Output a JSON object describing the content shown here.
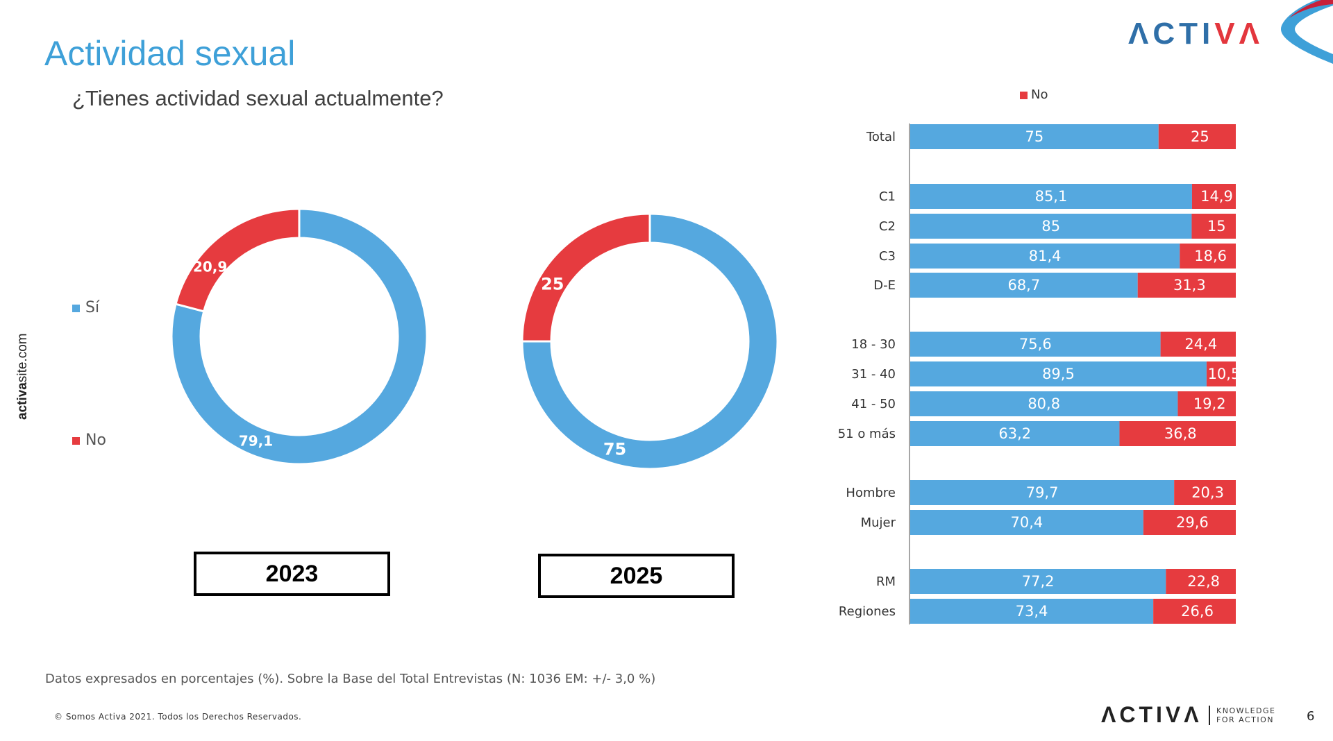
{
  "page": {
    "title": "Actividad sexual",
    "subtitle": "¿Tienes actividad sexual actualmente?",
    "side_site_bold": "activa",
    "side_site_rest": "site.com",
    "logo_text_1": "ΛCTI",
    "logo_text_2": "VΛ",
    "footnote": "Datos expresados en porcentajes (%). Sobre la Base del Total Entrevistas (N: 1036  EM: +/- 3,0 %)",
    "copyright": "© Somos Activa 2021. Todos los Derechos Reservados.",
    "logo_bottom": "ΛCTIVΛ",
    "logo_tag_1": "KNOWLEDGE",
    "logo_tag_2": "FOR ACTION",
    "page_number": "6"
  },
  "colors": {
    "si": "#55a8df",
    "no": "#e63b3f",
    "title": "#3ea0d8"
  },
  "legend_left": {
    "si": "Sí",
    "no": "No"
  },
  "legend_right": {
    "no": "No"
  },
  "chart_data": [
    {
      "type": "pie",
      "variant": "donut",
      "year_label": "2023",
      "slices": [
        {
          "name": "Sí",
          "value": 79.1,
          "label": "79,1"
        },
        {
          "name": "No",
          "value": 20.9,
          "label": "20,9"
        }
      ]
    },
    {
      "type": "pie",
      "variant": "donut",
      "year_label": "2025",
      "slices": [
        {
          "name": "Sí",
          "value": 75,
          "label": "75"
        },
        {
          "name": "No",
          "value": 25,
          "label": "25"
        }
      ]
    },
    {
      "type": "bar",
      "orientation": "horizontal",
      "stacked": true,
      "legend": "top",
      "categories": [
        "Total",
        "C1",
        "C2",
        "C3",
        "D-E",
        "18 - 30",
        "31 - 40",
        "41 - 50",
        "51 o más",
        "Hombre",
        "Mujer",
        "RM",
        "Regiones"
      ],
      "series": [
        {
          "key": "si",
          "values": [
            75,
            85.1,
            85,
            81.4,
            68.7,
            75.6,
            89.5,
            80.8,
            63.2,
            79.7,
            70.4,
            77.2,
            73.4
          ],
          "labels": [
            "75",
            "85,1",
            "85",
            "81,4",
            "68,7",
            "75,6",
            "89,5",
            "80,8",
            "63,2",
            "79,7",
            "70,4",
            "77,2",
            "73,4"
          ]
        },
        {
          "name": "No",
          "values": [
            25,
            14.9,
            15,
            18.6,
            31.3,
            24.4,
            10.5,
            19.2,
            36.8,
            20.3,
            29.6,
            22.8,
            26.6
          ],
          "labels": [
            "25",
            "14,9",
            "15",
            "18,6",
            "31,3",
            "24,4",
            "10,5",
            "19,2",
            "36,8",
            "20,3",
            "29,6",
            "22,8",
            "26,6"
          ]
        }
      ],
      "xlim": [
        0,
        100
      ]
    }
  ]
}
